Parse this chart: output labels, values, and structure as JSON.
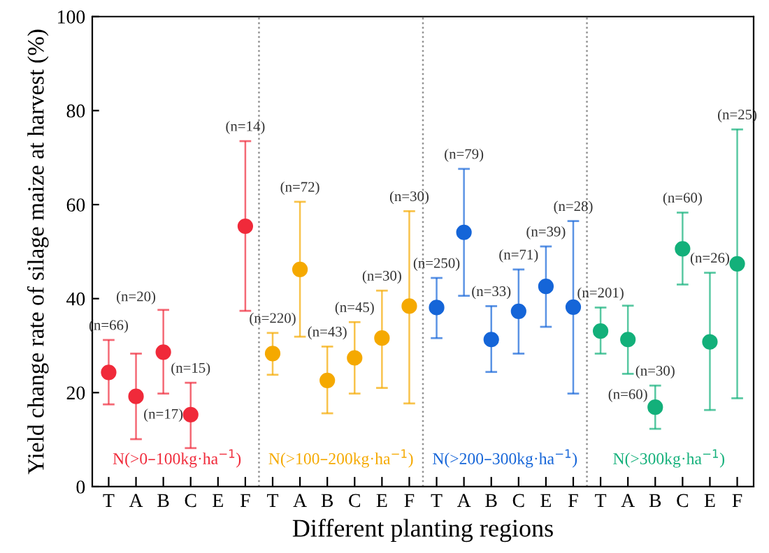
{
  "chart_data": {
    "type": "scatter",
    "xlabel": "Different planting regions",
    "ylabel": "Yield change rate of silage maize at harvest (%)",
    "categories": [
      "T",
      "A",
      "B",
      "C",
      "E",
      "F",
      "T",
      "A",
      "B",
      "C",
      "E",
      "F",
      "T",
      "A",
      "B",
      "C",
      "E",
      "F",
      "T",
      "A",
      "B",
      "C",
      "E",
      "F"
    ],
    "ylim": [
      0,
      100
    ],
    "yticks": [
      0,
      20,
      40,
      60,
      80,
      100
    ],
    "marker": "circle",
    "grid": false,
    "legend": false,
    "annotations": [
      "(n=66)",
      "(n=20)",
      "(n=17)",
      "(n=15)",
      "(n=14)",
      "(n=220)",
      "(n=72)",
      "(n=43)",
      "(n=45)",
      "(n=30)",
      "(n=30)",
      "(n=250)",
      "(n=79)",
      "(n=33)",
      "(n=71)",
      "(n=39)",
      "(n=28)",
      "(n=201)",
      "(n=60)",
      "(n=30)",
      "(n=60)",
      "(n=26)",
      "(n=25)"
    ],
    "series": [
      {
        "name": "N(>0–100kg·ha$^{−1}$)",
        "color": "#f02a3a",
        "values": [
          24.3,
          19.2,
          28.6,
          15.3,
          null,
          55.4,
          null,
          null,
          null,
          null,
          null,
          null,
          null,
          null,
          null,
          null,
          null,
          null,
          null,
          null,
          null,
          null,
          null,
          null
        ],
        "errors": [
          [
            17.5,
            31.2
          ],
          [
            10.1,
            28.3
          ],
          [
            19.8,
            37.6
          ],
          [
            8.2,
            22.1
          ],
          null,
          [
            37.4,
            73.5
          ],
          null,
          null,
          null,
          null,
          null,
          null,
          null,
          null,
          null,
          null,
          null,
          null,
          null,
          null,
          null,
          null,
          null,
          null
        ]
      },
      {
        "name": "N(>100–200kg·ha$^{−1}$)",
        "color": "#f5a900",
        "values": [
          null,
          null,
          null,
          null,
          null,
          null,
          28.3,
          46.2,
          22.6,
          27.4,
          31.6,
          38.4,
          null,
          null,
          null,
          null,
          null,
          null,
          null,
          null,
          null,
          null,
          null,
          null
        ],
        "errors": [
          null,
          null,
          null,
          null,
          null,
          null,
          [
            23.8,
            32.7
          ],
          [
            31.9,
            60.6
          ],
          [
            15.6,
            29.8
          ],
          [
            19.8,
            35.0
          ],
          [
            21.0,
            41.7
          ],
          [
            17.7,
            58.6
          ],
          null,
          null,
          null,
          null,
          null,
          null,
          null,
          null,
          null,
          null,
          null,
          null
        ]
      },
      {
        "name": "N(>200–300kg·ha$^{−1}$)",
        "color": "#1565d8",
        "values": [
          null,
          null,
          null,
          null,
          null,
          null,
          null,
          null,
          null,
          null,
          null,
          null,
          38.1,
          54.1,
          31.3,
          37.3,
          42.6,
          38.2,
          null,
          null,
          null,
          null,
          null,
          null
        ],
        "errors": [
          null,
          null,
          null,
          null,
          null,
          null,
          null,
          null,
          null,
          null,
          null,
          null,
          [
            31.6,
            44.4
          ],
          [
            40.6,
            67.6
          ],
          [
            24.4,
            38.4
          ],
          [
            28.3,
            46.2
          ],
          [
            34.0,
            51.1
          ],
          [
            19.8,
            56.5
          ],
          null,
          null,
          null,
          null,
          null,
          null
        ]
      },
      {
        "name": "N(>300kg·ha$^{−1}$)",
        "color": "#13b07a",
        "values": [
          null,
          null,
          null,
          null,
          null,
          null,
          null,
          null,
          null,
          null,
          null,
          null,
          null,
          null,
          null,
          null,
          null,
          null,
          33.1,
          31.3,
          16.9,
          50.6,
          30.8,
          47.4
        ],
        "errors": [
          null,
          null,
          null,
          null,
          null,
          null,
          null,
          null,
          null,
          null,
          null,
          null,
          null,
          null,
          null,
          null,
          null,
          null,
          [
            28.3,
            38.1
          ],
          [
            24.0,
            38.5
          ],
          [
            12.3,
            21.5
          ],
          [
            43.0,
            58.3
          ],
          [
            16.3,
            45.5
          ],
          [
            18.8,
            76.0
          ]
        ]
      }
    ]
  }
}
